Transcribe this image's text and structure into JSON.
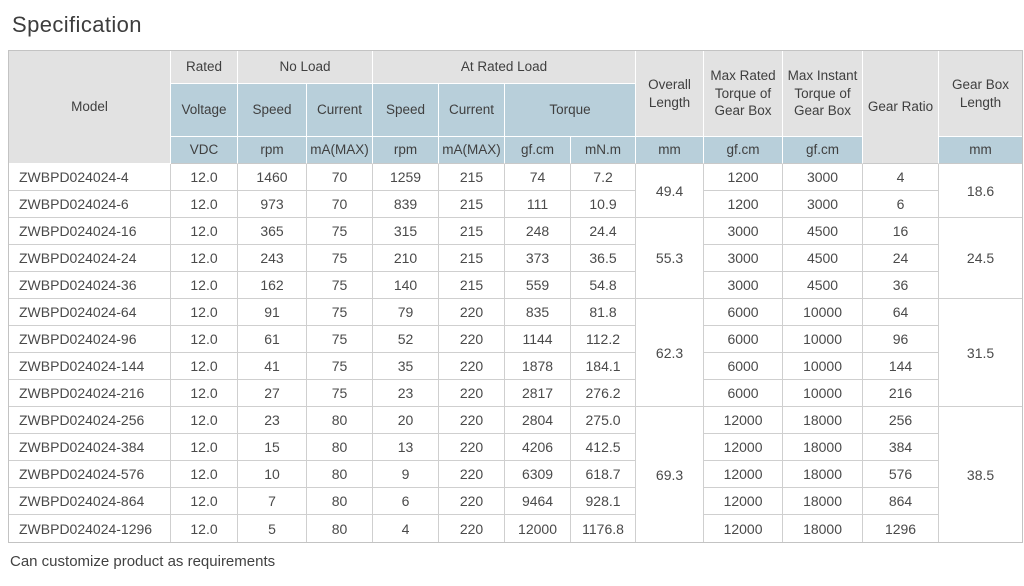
{
  "title": "Specification",
  "footer_note": "Can customize product as requirements",
  "colors": {
    "header_gray": "#e2e2e2",
    "header_blue": "#b8cfda",
    "grid_line": "#cfcfcf",
    "outer_border": "#c3c3c3",
    "text": "#4a4a4a"
  },
  "table": {
    "header": {
      "model": "Model",
      "rated": "Rated",
      "no_load": "No Load",
      "at_rated_load": "At Rated Load",
      "voltage": "Voltage",
      "no_load_speed": "Speed",
      "no_load_current": "Current",
      "load_speed": "Speed",
      "load_current": "Current",
      "torque": "Torque",
      "overall_length": "Overall Length",
      "max_rated_torque": "Max Rated Torque of Gear Box",
      "max_instant_torque": "Max Instant Torque of Gear Box",
      "gear_ratio": "Gear Ratio",
      "gear_box_length": "Gear Box Length"
    },
    "units": {
      "voltage": "VDC",
      "no_load_speed": "rpm",
      "no_load_current": "mA(MAX)",
      "load_speed": "rpm",
      "load_current": "mA(MAX)",
      "torque_gfcm": "gf.cm",
      "torque_mnm": "mN.m",
      "overall_length": "mm",
      "max_rated_torque": "gf.cm",
      "max_instant_torque": "gf.cm",
      "gear_box_length": "mm"
    },
    "groups": [
      {
        "overall_length": "49.4",
        "gear_box_length": "18.6",
        "rows": [
          {
            "model": "ZWBPD024024-4",
            "voltage": "12.0",
            "no_load_speed": "1460",
            "no_load_current": "70",
            "load_speed": "1259",
            "load_current": "215",
            "torque_gfcm": "74",
            "torque_mnm": "7.2",
            "max_rated_torque": "1200",
            "max_instant_torque": "3000",
            "gear_ratio": "4"
          },
          {
            "model": "ZWBPD024024-6",
            "voltage": "12.0",
            "no_load_speed": "973",
            "no_load_current": "70",
            "load_speed": "839",
            "load_current": "215",
            "torque_gfcm": "111",
            "torque_mnm": "10.9",
            "max_rated_torque": "1200",
            "max_instant_torque": "3000",
            "gear_ratio": "6"
          }
        ]
      },
      {
        "overall_length": "55.3",
        "gear_box_length": "24.5",
        "rows": [
          {
            "model": "ZWBPD024024-16",
            "voltage": "12.0",
            "no_load_speed": "365",
            "no_load_current": "75",
            "load_speed": "315",
            "load_current": "215",
            "torque_gfcm": "248",
            "torque_mnm": "24.4",
            "max_rated_torque": "3000",
            "max_instant_torque": "4500",
            "gear_ratio": "16"
          },
          {
            "model": "ZWBPD024024-24",
            "voltage": "12.0",
            "no_load_speed": "243",
            "no_load_current": "75",
            "load_speed": "210",
            "load_current": "215",
            "torque_gfcm": "373",
            "torque_mnm": "36.5",
            "max_rated_torque": "3000",
            "max_instant_torque": "4500",
            "gear_ratio": "24"
          },
          {
            "model": "ZWBPD024024-36",
            "voltage": "12.0",
            "no_load_speed": "162",
            "no_load_current": "75",
            "load_speed": "140",
            "load_current": "215",
            "torque_gfcm": "559",
            "torque_mnm": "54.8",
            "max_rated_torque": "3000",
            "max_instant_torque": "4500",
            "gear_ratio": "36"
          }
        ]
      },
      {
        "overall_length": "62.3",
        "gear_box_length": "31.5",
        "rows": [
          {
            "model": "ZWBPD024024-64",
            "voltage": "12.0",
            "no_load_speed": "91",
            "no_load_current": "75",
            "load_speed": "79",
            "load_current": "220",
            "torque_gfcm": "835",
            "torque_mnm": "81.8",
            "max_rated_torque": "6000",
            "max_instant_torque": "10000",
            "gear_ratio": "64"
          },
          {
            "model": "ZWBPD024024-96",
            "voltage": "12.0",
            "no_load_speed": "61",
            "no_load_current": "75",
            "load_speed": "52",
            "load_current": "220",
            "torque_gfcm": "1144",
            "torque_mnm": "112.2",
            "max_rated_torque": "6000",
            "max_instant_torque": "10000",
            "gear_ratio": "96"
          },
          {
            "model": "ZWBPD024024-144",
            "voltage": "12.0",
            "no_load_speed": "41",
            "no_load_current": "75",
            "load_speed": "35",
            "load_current": "220",
            "torque_gfcm": "1878",
            "torque_mnm": "184.1",
            "max_rated_torque": "6000",
            "max_instant_torque": "10000",
            "gear_ratio": "144"
          },
          {
            "model": "ZWBPD024024-216",
            "voltage": "12.0",
            "no_load_speed": "27",
            "no_load_current": "75",
            "load_speed": "23",
            "load_current": "220",
            "torque_gfcm": "2817",
            "torque_mnm": "276.2",
            "max_rated_torque": "6000",
            "max_instant_torque": "10000",
            "gear_ratio": "216"
          }
        ]
      },
      {
        "overall_length": "69.3",
        "gear_box_length": "38.5",
        "rows": [
          {
            "model": "ZWBPD024024-256",
            "voltage": "12.0",
            "no_load_speed": "23",
            "no_load_current": "80",
            "load_speed": "20",
            "load_current": "220",
            "torque_gfcm": "2804",
            "torque_mnm": "275.0",
            "max_rated_torque": "12000",
            "max_instant_torque": "18000",
            "gear_ratio": "256"
          },
          {
            "model": "ZWBPD024024-384",
            "voltage": "12.0",
            "no_load_speed": "15",
            "no_load_current": "80",
            "load_speed": "13",
            "load_current": "220",
            "torque_gfcm": "4206",
            "torque_mnm": "412.5",
            "max_rated_torque": "12000",
            "max_instant_torque": "18000",
            "gear_ratio": "384"
          },
          {
            "model": "ZWBPD024024-576",
            "voltage": "12.0",
            "no_load_speed": "10",
            "no_load_current": "80",
            "load_speed": "9",
            "load_current": "220",
            "torque_gfcm": "6309",
            "torque_mnm": "618.7",
            "max_rated_torque": "12000",
            "max_instant_torque": "18000",
            "gear_ratio": "576"
          },
          {
            "model": "ZWBPD024024-864",
            "voltage": "12.0",
            "no_load_speed": "7",
            "no_load_current": "80",
            "load_speed": "6",
            "load_current": "220",
            "torque_gfcm": "9464",
            "torque_mnm": "928.1",
            "max_rated_torque": "12000",
            "max_instant_torque": "18000",
            "gear_ratio": "864"
          },
          {
            "model": "ZWBPD024024-1296",
            "voltage": "12.0",
            "no_load_speed": "5",
            "no_load_current": "80",
            "load_speed": "4",
            "load_current": "220",
            "torque_gfcm": "12000",
            "torque_mnm": "1176.8",
            "max_rated_torque": "12000",
            "max_instant_torque": "18000",
            "gear_ratio": "1296"
          }
        ]
      }
    ]
  }
}
